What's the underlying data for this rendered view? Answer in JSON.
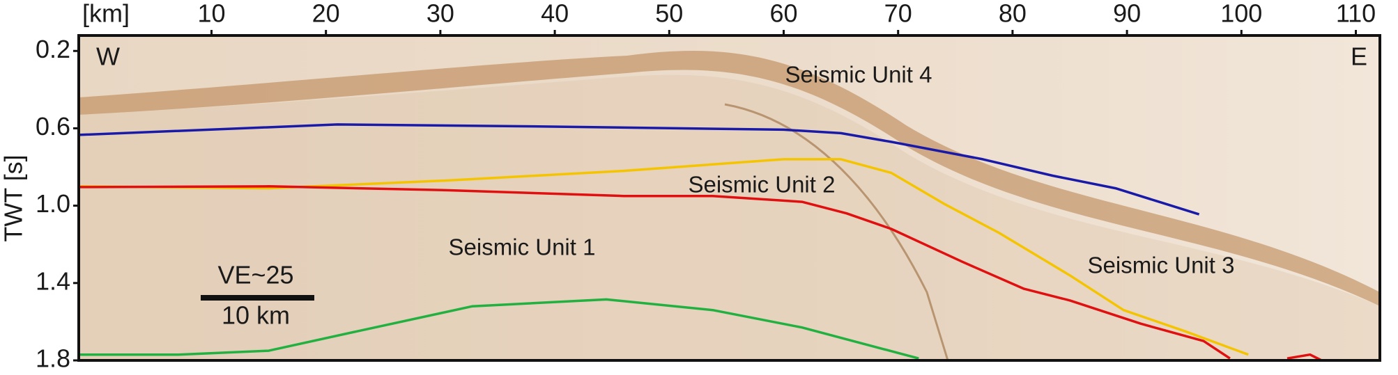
{
  "chart_data": {
    "type": "line",
    "x_label": "[km]",
    "y_label": "TWT [s]",
    "xlim": [
      -1.6,
      112.1
    ],
    "ylim": [
      0.12,
      1.8
    ],
    "y_inverted": true,
    "xticks": [
      10,
      20,
      30,
      40,
      50,
      60,
      70,
      80,
      90,
      100,
      110
    ],
    "yticks": [
      0.2,
      0.6,
      {
        "value": 1,
        "label": "1.0"
      },
      1.4,
      1.8
    ],
    "series": [
      {
        "color": "#1a1aa8",
        "x": [
          -1.6,
          21,
          38,
          60,
          65,
          69.4,
          77.4,
          83.5,
          89,
          92.8,
          96.3
        ],
        "values": [
          0.634,
          0.58,
          0.59,
          0.607,
          0.625,
          0.67,
          0.76,
          0.845,
          0.91,
          0.98,
          1.045
        ]
      },
      {
        "color": "#f5c400",
        "x": [
          -1.6,
          15,
          30.5,
          46,
          60,
          65,
          69.4,
          74,
          78.8,
          85,
          89.7,
          95.1,
          100.6
        ],
        "values": [
          0.9,
          0.91,
          0.87,
          0.82,
          0.76,
          0.76,
          0.83,
          0.99,
          1.14,
          1.36,
          1.54,
          1.65,
          1.77
        ]
      },
      {
        "color": "#e01010",
        "x": [
          -1.6,
          15,
          30.5,
          46,
          53.8,
          61.6,
          65.5,
          69.4,
          75.6,
          81,
          85,
          91.2,
          96.7,
          99,
          102,
          104,
          106,
          107
        ],
        "values": [
          0.904,
          0.9,
          0.92,
          0.95,
          0.95,
          0.98,
          1.04,
          1.12,
          1.29,
          1.43,
          1.49,
          1.61,
          1.7,
          1.79,
          null,
          1.79,
          1.77,
          1.8
        ]
      },
      {
        "color": "#22b040",
        "x": [
          -1.6,
          7.1,
          15,
          22.7,
          32.8,
          44.5,
          53.8,
          61.6,
          71.8
        ],
        "values": [
          1.77,
          1.77,
          1.75,
          1.65,
          1.52,
          1.485,
          1.54,
          1.63,
          1.79
        ]
      }
    ],
    "annotations": [
      "W",
      "E",
      "Seismic Unit 4",
      "Seismic Unit 2",
      "Seismic Unit 1",
      "Seismic Unit 3"
    ],
    "scale_bar": {
      "exaggeration": "VE~25",
      "length": "10 km"
    }
  }
}
